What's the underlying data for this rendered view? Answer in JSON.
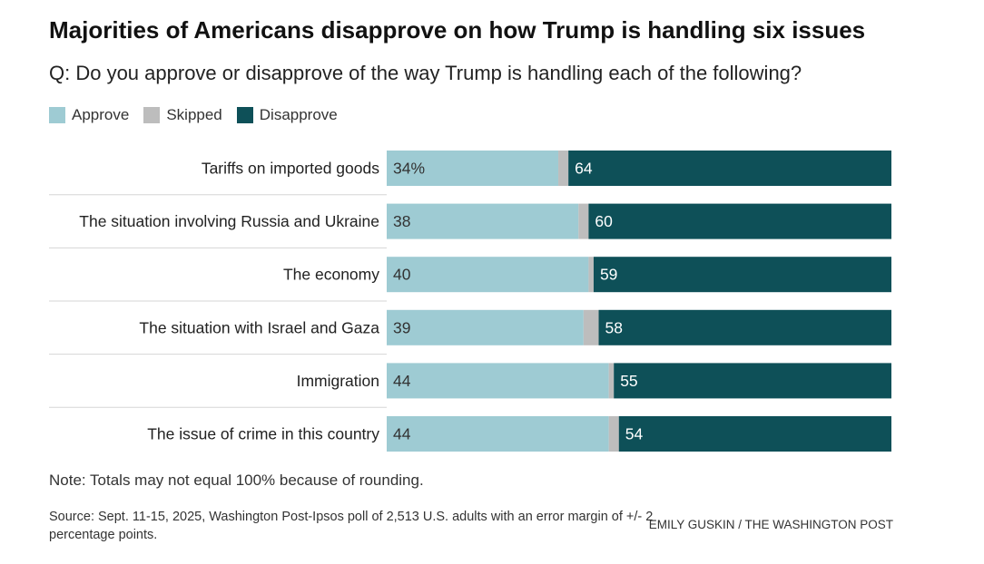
{
  "title": "Majorities of Americans disapprove on how Trump is handling six issues",
  "subtitle": "Q: Do you approve or disapprove of the way Trump is handling each of the following?",
  "legend": [
    {
      "label": "Approve",
      "color": "#9ecbd3"
    },
    {
      "label": "Skipped",
      "color": "#bdbdbd"
    },
    {
      "label": "Disapprove",
      "color": "#0e5058"
    }
  ],
  "note": "Note: Totals may not equal 100% because of rounding.",
  "source": "Source: Sept. 11-15, 2025, Washington Post-Ipsos poll of 2,513 U.S. adults with an error margin of +/- 2 percentage points.",
  "credit": "EMILY GUSKIN / THE WASHINGTON POST",
  "chart_data": {
    "type": "bar",
    "orientation": "horizontal",
    "stacked": true,
    "categories": [
      "Tariffs on imported goods",
      "The situation involving Russia and Ukraine",
      "The economy",
      "The situation with Israel and Gaza",
      "Immigration",
      "The issue of crime in this country"
    ],
    "series": [
      {
        "name": "Approve",
        "values": [
          34,
          38,
          40,
          39,
          44,
          44
        ],
        "labels": [
          "34%",
          "38",
          "40",
          "39",
          "44",
          "44"
        ]
      },
      {
        "name": "Skipped",
        "values": [
          2,
          2,
          1,
          3,
          1,
          2
        ]
      },
      {
        "name": "Disapprove",
        "values": [
          64,
          60,
          59,
          58,
          55,
          54
        ],
        "labels": [
          "64",
          "60",
          "59",
          "58",
          "55",
          "54"
        ]
      }
    ],
    "xlim": [
      0,
      100
    ],
    "grid": false,
    "legend_position": "top-left"
  }
}
